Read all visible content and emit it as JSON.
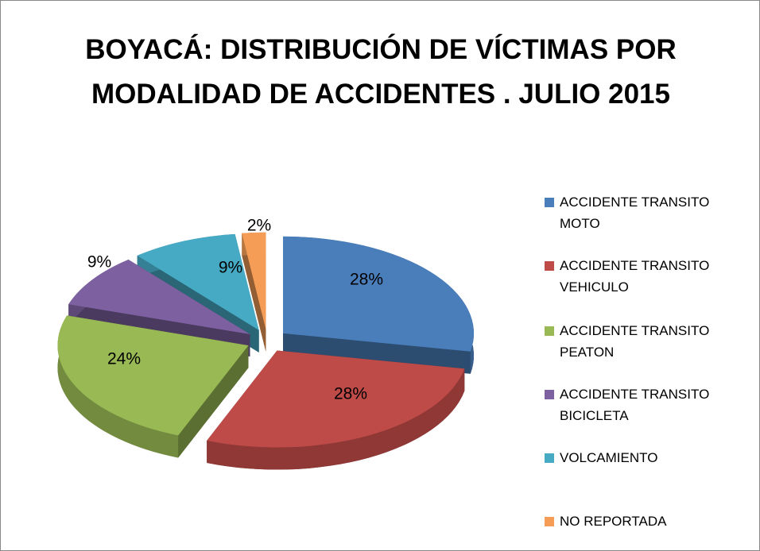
{
  "chart_data": {
    "type": "pie",
    "title": "BOYACÁ: DISTRIBUCIÓN DE VÍCTIMAS POR MODALIDAD DE ACCIDENTES . JULIO 2015",
    "categories": [
      "ACCIDENTE TRANSITO MOTO",
      "ACCIDENTE TRANSITO VEHICULO",
      "ACCIDENTE TRANSITO PEATON",
      "ACCIDENTE TRANSITO BICICLETA",
      "VOLCAMIENTO",
      "NO REPORTADA"
    ],
    "values": [
      28,
      28,
      24,
      9,
      9,
      2
    ],
    "value_labels": [
      "28%",
      "28%",
      "24%",
      "9%",
      "9%",
      "2%"
    ],
    "colors": [
      "#4a7ebb",
      "#be4b48",
      "#98b954",
      "#7d60a0",
      "#46aac5",
      "#f59d56"
    ],
    "legend": "right"
  }
}
